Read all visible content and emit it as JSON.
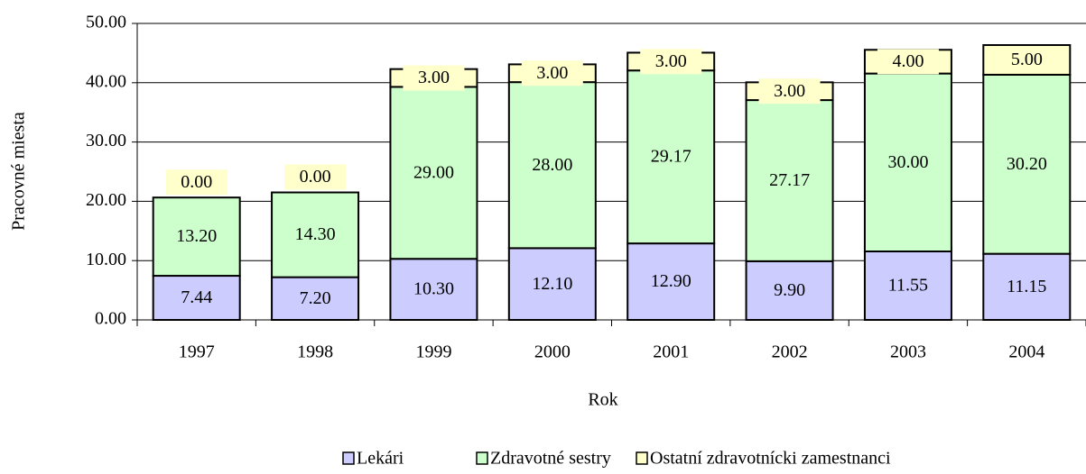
{
  "chart_data": {
    "type": "stacked_bar",
    "x_label": "Rok",
    "y_label": "Pracovné miesta",
    "categories": [
      "1997",
      "1998",
      "1999",
      "2000",
      "2001",
      "2002",
      "2003",
      "2004"
    ],
    "series": [
      {
        "name": "Lekári",
        "color": "#ccccff",
        "values": [
          7.44,
          7.2,
          10.3,
          12.1,
          12.9,
          9.9,
          11.55,
          11.15
        ],
        "value_labels": [
          "7.44",
          "7.20",
          "10.30",
          "12.10",
          "12.90",
          "9.90",
          "11.55",
          "11.15"
        ]
      },
      {
        "name": "Zdravotné sestry",
        "color": "#ccffcc",
        "values": [
          13.2,
          14.3,
          29,
          28,
          29.17,
          27.17,
          30,
          30.2
        ],
        "value_labels": [
          "13.20",
          "14.30",
          "29.00",
          "28.00",
          "29.17",
          "27.17",
          "30.00",
          "30.20"
        ]
      },
      {
        "name": "Ostatní zdravotnícki zamestnanci",
        "color": "#ffffcc",
        "values": [
          0,
          0,
          3,
          3,
          3,
          3,
          4,
          5
        ],
        "value_labels": [
          "0.00",
          "0.00",
          "3.00",
          "3.00",
          "3.00",
          "3.00",
          "4.00",
          "5.00"
        ]
      }
    ],
    "ylim": [
      0,
      50
    ],
    "yticks": [
      {
        "value": 0,
        "label": "0.00"
      },
      {
        "value": 10,
        "label": "10.00"
      },
      {
        "value": 20,
        "label": "20.00"
      },
      {
        "value": 30,
        "label": "30.00"
      },
      {
        "value": 40,
        "label": "40.00"
      },
      {
        "value": 50,
        "label": "50.00"
      }
    ],
    "grid": true,
    "legend": "bottom"
  }
}
